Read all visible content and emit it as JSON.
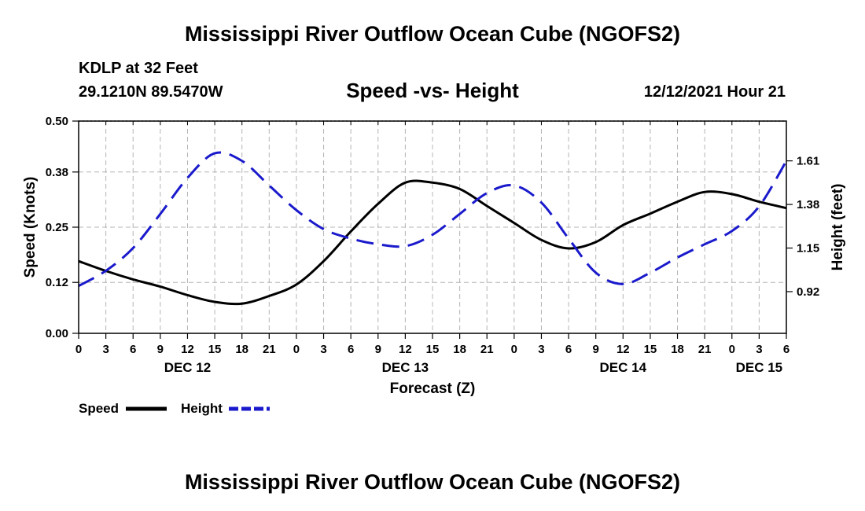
{
  "header": {
    "title": "Mississippi River Outflow Ocean Cube (NGOFS2)",
    "station": "KDLP at 32 Feet",
    "coords": "29.1210N  89.5470W",
    "subtitle": "Speed -vs- Height",
    "datetime": "12/12/2021 Hour 21"
  },
  "footer": {
    "title": "Mississippi River Outflow Ocean Cube (NGOFS2)"
  },
  "chart_data": {
    "type": "line",
    "title": "Speed -vs- Height",
    "xlabel": "Forecast (Z)",
    "ylabel": "Speed (Knots)",
    "y2label": "Height (feet)",
    "x_unit": "hours from Dec 12 00Z",
    "xlim": [
      0,
      78
    ],
    "ylim": [
      0,
      0.5
    ],
    "y2lim": [
      0.7,
      1.82
    ],
    "grid": true,
    "x_ticks": [
      0,
      3,
      6,
      9,
      12,
      15,
      18,
      21,
      24,
      27,
      30,
      33,
      36,
      39,
      42,
      45,
      48,
      51,
      54,
      57,
      60,
      63,
      66,
      69,
      72,
      75,
      78
    ],
    "x_tick_labels": [
      "0",
      "3",
      "6",
      "9",
      "12",
      "15",
      "18",
      "21",
      "0",
      "3",
      "6",
      "9",
      "12",
      "15",
      "18",
      "21",
      "0",
      "3",
      "6",
      "9",
      "12",
      "15",
      "18",
      "21",
      "0",
      "3",
      "6"
    ],
    "date_labels": [
      {
        "x": 12,
        "label": "DEC 12"
      },
      {
        "x": 36,
        "label": "DEC 13"
      },
      {
        "x": 60,
        "label": "DEC 14"
      },
      {
        "x": 75,
        "label": "DEC 15"
      }
    ],
    "y_ticks": [
      0.0,
      0.12,
      0.25,
      0.38,
      0.5
    ],
    "y_tick_labels": [
      "0.00",
      "0.12",
      "0.25",
      "0.38",
      "0.50"
    ],
    "y2_ticks": [
      0.92,
      1.15,
      1.38,
      1.61
    ],
    "y2_tick_labels": [
      "0.92",
      "1.15",
      "1.38",
      "1.61"
    ],
    "series": [
      {
        "name": "Speed",
        "axis": "left",
        "color": "#000000",
        "dash": "solid",
        "x": [
          0,
          3,
          6,
          9,
          12,
          15,
          18,
          21,
          24,
          27,
          30,
          33,
          36,
          39,
          42,
          45,
          48,
          51,
          54,
          57,
          60,
          63,
          66,
          69,
          72,
          75,
          78
        ],
        "values": [
          0.17,
          0.147,
          0.127,
          0.11,
          0.09,
          0.074,
          0.07,
          0.088,
          0.115,
          0.17,
          0.24,
          0.305,
          0.355,
          0.355,
          0.34,
          0.3,
          0.26,
          0.22,
          0.2,
          0.215,
          0.255,
          0.282,
          0.31,
          0.333,
          0.328,
          0.31,
          0.295
        ]
      },
      {
        "name": "Height",
        "axis": "right",
        "color": "#1a1acc",
        "dash": "dashed",
        "x": [
          0,
          3,
          6,
          9,
          12,
          15,
          18,
          21,
          24,
          27,
          30,
          33,
          36,
          39,
          42,
          45,
          48,
          51,
          54,
          57,
          60,
          63,
          66,
          69,
          72,
          75,
          78
        ],
        "values": [
          0.95,
          1.03,
          1.15,
          1.33,
          1.52,
          1.65,
          1.61,
          1.48,
          1.35,
          1.25,
          1.2,
          1.17,
          1.16,
          1.22,
          1.33,
          1.44,
          1.48,
          1.39,
          1.2,
          1.02,
          0.96,
          1.02,
          1.1,
          1.17,
          1.24,
          1.37,
          1.61
        ]
      }
    ],
    "legend": [
      {
        "label": "Speed",
        "color": "#000000",
        "dash": "solid"
      },
      {
        "label": "Height",
        "color": "#1a1acc",
        "dash": "dashed"
      }
    ],
    "legend_position": "bottom-left"
  }
}
